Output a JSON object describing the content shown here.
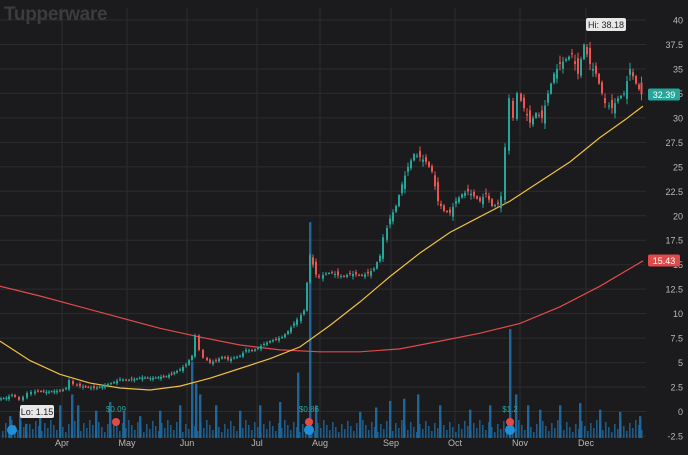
{
  "watermark": "Tupperware",
  "colors": {
    "background": "#1b1b1d",
    "grid": "#2c2c30",
    "up": "#26a69a",
    "down": "#ef5350",
    "sma_short": "#f0c040",
    "sma_long": "#e04a4a",
    "volume": "#1f6fa8",
    "axis_text": "#b8b8b8"
  },
  "chart_data": {
    "type": "candlestick",
    "title": "",
    "xlabel": "",
    "ylabel": "",
    "ylim": [
      -2.5,
      41
    ],
    "y_ticks": [
      "40",
      "37.5",
      "35",
      "32.5",
      "30",
      "27.5",
      "25",
      "22.5",
      "20",
      "17.5",
      "15",
      "12.5",
      "10",
      "7.5",
      "5",
      "2.5",
      "0",
      "-2.5"
    ],
    "x_ticks": [
      "Apr",
      "May",
      "Jun",
      "Jul",
      "Aug",
      "Sep",
      "Oct",
      "Nov",
      "Dec"
    ],
    "grid": true,
    "price_path_dense_estimate": [
      [
        0,
        1.3
      ],
      [
        8,
        1.4
      ],
      [
        14,
        1.7
      ],
      [
        18,
        1.5
      ],
      [
        22,
        1.2
      ],
      [
        26,
        1.5
      ],
      [
        30,
        1.9
      ],
      [
        34,
        2.0
      ],
      [
        40,
        2.1
      ],
      [
        48,
        2.0
      ],
      [
        56,
        2.1
      ],
      [
        62,
        2.1
      ],
      [
        68,
        2.4
      ],
      [
        72,
        3.2
      ],
      [
        76,
        2.8
      ],
      [
        82,
        2.6
      ],
      [
        90,
        2.5
      ],
      [
        96,
        2.4
      ],
      [
        104,
        2.6
      ],
      [
        110,
        2.8
      ],
      [
        116,
        3.0
      ],
      [
        122,
        3.3
      ],
      [
        128,
        3.2
      ],
      [
        136,
        3.3
      ],
      [
        144,
        3.5
      ],
      [
        152,
        3.4
      ],
      [
        160,
        3.5
      ],
      [
        168,
        3.6
      ],
      [
        176,
        4.0
      ],
      [
        182,
        4.3
      ],
      [
        188,
        4.8
      ],
      [
        194,
        5.7
      ],
      [
        198,
        7.8
      ],
      [
        202,
        6.3
      ],
      [
        206,
        5.5
      ],
      [
        212,
        5.0
      ],
      [
        218,
        5.2
      ],
      [
        224,
        5.6
      ],
      [
        230,
        5.3
      ],
      [
        236,
        5.5
      ],
      [
        242,
        5.7
      ],
      [
        248,
        6.3
      ],
      [
        254,
        6.2
      ],
      [
        260,
        6.5
      ],
      [
        266,
        6.9
      ],
      [
        272,
        7.2
      ],
      [
        278,
        7.4
      ],
      [
        284,
        7.6
      ],
      [
        290,
        8.2
      ],
      [
        296,
        9.0
      ],
      [
        300,
        9.4
      ],
      [
        306,
        10.3
      ],
      [
        312,
        16.0
      ],
      [
        318,
        14.0
      ],
      [
        322,
        13.8
      ],
      [
        328,
        14.1
      ],
      [
        334,
        14.2
      ],
      [
        340,
        13.9
      ],
      [
        346,
        13.8
      ],
      [
        352,
        14.1
      ],
      [
        358,
        14.0
      ],
      [
        364,
        13.9
      ],
      [
        370,
        14.1
      ],
      [
        376,
        14.6
      ],
      [
        382,
        15.9
      ],
      [
        386,
        17.8
      ],
      [
        392,
        19.7
      ],
      [
        398,
        21.0
      ],
      [
        404,
        23.2
      ],
      [
        410,
        25.0
      ],
      [
        416,
        26.3
      ],
      [
        422,
        26.0
      ],
      [
        428,
        25.5
      ],
      [
        434,
        24.5
      ],
      [
        440,
        21.5
      ],
      [
        446,
        20.5
      ],
      [
        452,
        20.3
      ],
      [
        458,
        21.5
      ],
      [
        464,
        22.2
      ],
      [
        470,
        22.5
      ],
      [
        476,
        22.0
      ],
      [
        482,
        21.5
      ],
      [
        488,
        22.3
      ],
      [
        494,
        21.0
      ],
      [
        500,
        21.2
      ],
      [
        504,
        22.0
      ],
      [
        508,
        27.0
      ],
      [
        512,
        32.0
      ],
      [
        516,
        30.0
      ],
      [
        520,
        32.5
      ],
      [
        526,
        31.0
      ],
      [
        532,
        29.5
      ],
      [
        538,
        30.5
      ],
      [
        544,
        30.0
      ],
      [
        550,
        32.5
      ],
      [
        556,
        34.5
      ],
      [
        562,
        35.5
      ],
      [
        568,
        36.0
      ],
      [
        574,
        36.5
      ],
      [
        580,
        34.5
      ],
      [
        586,
        37.5
      ],
      [
        592,
        35.5
      ],
      [
        598,
        34.5
      ],
      [
        604,
        32.5
      ],
      [
        608,
        31.5
      ],
      [
        614,
        31.0
      ],
      [
        620,
        32.0
      ],
      [
        626,
        32.5
      ],
      [
        632,
        35.0
      ],
      [
        638,
        33.5
      ],
      [
        643,
        32.4
      ]
    ],
    "sma_short_path": [
      [
        0,
        7.2
      ],
      [
        30,
        5.2
      ],
      [
        60,
        3.8
      ],
      [
        90,
        2.9
      ],
      [
        120,
        2.4
      ],
      [
        150,
        2.2
      ],
      [
        180,
        2.6
      ],
      [
        210,
        3.4
      ],
      [
        240,
        4.4
      ],
      [
        270,
        5.4
      ],
      [
        300,
        6.6
      ],
      [
        330,
        8.8
      ],
      [
        360,
        11.2
      ],
      [
        390,
        13.8
      ],
      [
        420,
        16.2
      ],
      [
        450,
        18.3
      ],
      [
        480,
        19.9
      ],
      [
        510,
        21.5
      ],
      [
        540,
        23.5
      ],
      [
        570,
        25.5
      ],
      [
        600,
        28.0
      ],
      [
        625,
        29.8
      ],
      [
        643,
        31.2
      ]
    ],
    "sma_long_path": [
      [
        0,
        12.8
      ],
      [
        40,
        11.8
      ],
      [
        80,
        10.7
      ],
      [
        120,
        9.6
      ],
      [
        160,
        8.5
      ],
      [
        200,
        7.6
      ],
      [
        240,
        6.8
      ],
      [
        280,
        6.3
      ],
      [
        320,
        6.1
      ],
      [
        360,
        6.1
      ],
      [
        400,
        6.4
      ],
      [
        440,
        7.2
      ],
      [
        480,
        8.0
      ],
      [
        520,
        9.0
      ],
      [
        560,
        10.7
      ],
      [
        600,
        12.8
      ],
      [
        643,
        15.4
      ]
    ],
    "volume_bars": [
      [
        10,
        2
      ],
      [
        20,
        2.5
      ],
      [
        26,
        1.3
      ],
      [
        40,
        2.6
      ],
      [
        60,
        3
      ],
      [
        72,
        4
      ],
      [
        78,
        3
      ],
      [
        96,
        2.5
      ],
      [
        110,
        3.3
      ],
      [
        124,
        2.4
      ],
      [
        140,
        2
      ],
      [
        160,
        2.5
      ],
      [
        180,
        3
      ],
      [
        192,
        7
      ],
      [
        196,
        5
      ],
      [
        200,
        4
      ],
      [
        216,
        3
      ],
      [
        240,
        2.5
      ],
      [
        260,
        3
      ],
      [
        280,
        3.3
      ],
      [
        298,
        6
      ],
      [
        310,
        19.8
      ],
      [
        316,
        3
      ],
      [
        360,
        2.4
      ],
      [
        376,
        2.8
      ],
      [
        390,
        3.4
      ],
      [
        404,
        3.6
      ],
      [
        418,
        4
      ],
      [
        440,
        3
      ],
      [
        470,
        2.6
      ],
      [
        490,
        3
      ],
      [
        510,
        10
      ],
      [
        516,
        4
      ],
      [
        528,
        3
      ],
      [
        540,
        2.6
      ],
      [
        560,
        3
      ],
      [
        580,
        3.2
      ],
      [
        600,
        2.6
      ],
      [
        620,
        2.4
      ],
      [
        640,
        2
      ]
    ],
    "annotations": [
      {
        "text": "Hi: 38.18"
      },
      {
        "text": "Lo: 1.15"
      },
      {
        "text": "$0.09"
      },
      {
        "text": "$0.86"
      },
      {
        "text": "$1.2"
      }
    ],
    "price_labels": [
      {
        "value": 32.39,
        "text": "32.39",
        "series": "price"
      },
      {
        "value": 15.43,
        "text": "15.43",
        "series": "sma_long"
      }
    ]
  }
}
